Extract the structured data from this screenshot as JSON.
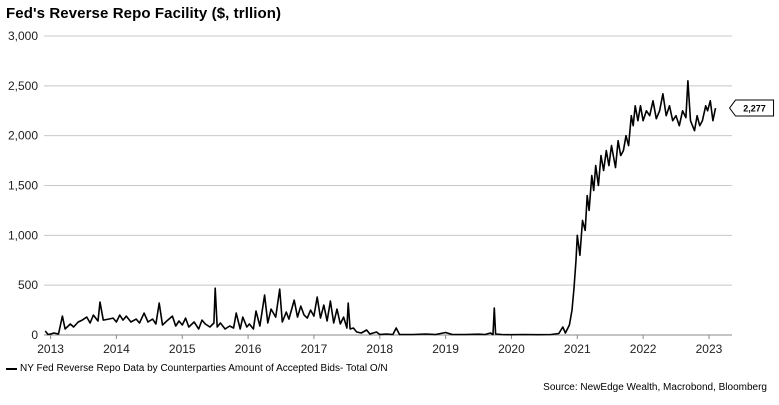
{
  "chart_data": {
    "type": "line",
    "title": "Fed's Reverse Repo Facility ($, trllion)",
    "xlabel": "",
    "ylabel": "",
    "ylim": [
      0,
      3000
    ],
    "yticks": [
      "0",
      "500",
      "1,000",
      "1,500",
      "2,000",
      "2,500",
      "3,000"
    ],
    "xlim": [
      2012.9,
      2023.35
    ],
    "xticks": [
      {
        "x": 2013,
        "label": "2013"
      },
      {
        "x": 2014,
        "label": "2014"
      },
      {
        "x": 2015,
        "label": "2015"
      },
      {
        "x": 2016,
        "label": "2016"
      },
      {
        "x": 2017,
        "label": "2017"
      },
      {
        "x": 2018,
        "label": "2018"
      },
      {
        "x": 2019,
        "label": "2019"
      },
      {
        "x": 2020,
        "label": "2020"
      },
      {
        "x": 2021,
        "label": "2021"
      },
      {
        "x": 2022,
        "label": "2022"
      },
      {
        "x": 2023,
        "label": "2023"
      }
    ],
    "grid": "horizontal",
    "legend_position": "bottom-left",
    "end_label": "2,277",
    "series": [
      {
        "name": "NY Fed Reverse Repo Data by Counterparties Amount of Accepted Bids- Total O/N",
        "color": "#000000",
        "points": [
          [
            2012.92,
            40
          ],
          [
            2012.96,
            5
          ],
          [
            2013.0,
            10
          ],
          [
            2013.05,
            20
          ],
          [
            2013.12,
            10
          ],
          [
            2013.18,
            190
          ],
          [
            2013.22,
            60
          ],
          [
            2013.3,
            110
          ],
          [
            2013.35,
            80
          ],
          [
            2013.42,
            130
          ],
          [
            2013.48,
            150
          ],
          [
            2013.55,
            180
          ],
          [
            2013.6,
            120
          ],
          [
            2013.65,
            200
          ],
          [
            2013.72,
            140
          ],
          [
            2013.75,
            330
          ],
          [
            2013.8,
            150
          ],
          [
            2013.88,
            160
          ],
          [
            2013.95,
            170
          ],
          [
            2014.0,
            130
          ],
          [
            2014.05,
            200
          ],
          [
            2014.1,
            150
          ],
          [
            2014.15,
            190
          ],
          [
            2014.22,
            130
          ],
          [
            2014.3,
            160
          ],
          [
            2014.35,
            120
          ],
          [
            2014.42,
            220
          ],
          [
            2014.48,
            130
          ],
          [
            2014.55,
            160
          ],
          [
            2014.6,
            110
          ],
          [
            2014.65,
            320
          ],
          [
            2014.7,
            100
          ],
          [
            2014.78,
            150
          ],
          [
            2014.85,
            190
          ],
          [
            2014.9,
            90
          ],
          [
            2014.95,
            140
          ],
          [
            2015.0,
            100
          ],
          [
            2015.05,
            170
          ],
          [
            2015.1,
            80
          ],
          [
            2015.18,
            130
          ],
          [
            2015.25,
            60
          ],
          [
            2015.3,
            150
          ],
          [
            2015.35,
            110
          ],
          [
            2015.42,
            80
          ],
          [
            2015.48,
            120
          ],
          [
            2015.5,
            470
          ],
          [
            2015.53,
            80
          ],
          [
            2015.58,
            120
          ],
          [
            2015.65,
            60
          ],
          [
            2015.72,
            90
          ],
          [
            2015.78,
            70
          ],
          [
            2015.82,
            220
          ],
          [
            2015.88,
            60
          ],
          [
            2015.92,
            180
          ],
          [
            2015.98,
            80
          ],
          [
            2016.02,
            110
          ],
          [
            2016.08,
            60
          ],
          [
            2016.12,
            240
          ],
          [
            2016.18,
            90
          ],
          [
            2016.25,
            400
          ],
          [
            2016.3,
            120
          ],
          [
            2016.35,
            260
          ],
          [
            2016.42,
            180
          ],
          [
            2016.48,
            460
          ],
          [
            2016.52,
            130
          ],
          [
            2016.58,
            230
          ],
          [
            2016.62,
            160
          ],
          [
            2016.7,
            350
          ],
          [
            2016.75,
            180
          ],
          [
            2016.8,
            290
          ],
          [
            2016.85,
            200
          ],
          [
            2016.9,
            170
          ],
          [
            2016.95,
            250
          ],
          [
            2017.0,
            190
          ],
          [
            2017.05,
            380
          ],
          [
            2017.1,
            170
          ],
          [
            2017.15,
            300
          ],
          [
            2017.2,
            140
          ],
          [
            2017.25,
            340
          ],
          [
            2017.3,
            120
          ],
          [
            2017.35,
            260
          ],
          [
            2017.4,
            110
          ],
          [
            2017.45,
            180
          ],
          [
            2017.5,
            70
          ],
          [
            2017.52,
            320
          ],
          [
            2017.55,
            60
          ],
          [
            2017.6,
            70
          ],
          [
            2017.65,
            30
          ],
          [
            2017.72,
            20
          ],
          [
            2017.8,
            50
          ],
          [
            2017.85,
            10
          ],
          [
            2017.95,
            30
          ],
          [
            2018.0,
            5
          ],
          [
            2018.1,
            10
          ],
          [
            2018.2,
            5
          ],
          [
            2018.25,
            70
          ],
          [
            2018.3,
            5
          ],
          [
            2018.5,
            5
          ],
          [
            2018.7,
            10
          ],
          [
            2018.85,
            5
          ],
          [
            2019.0,
            25
          ],
          [
            2019.1,
            5
          ],
          [
            2019.3,
            5
          ],
          [
            2019.5,
            8
          ],
          [
            2019.6,
            5
          ],
          [
            2019.68,
            20
          ],
          [
            2019.72,
            5
          ],
          [
            2019.74,
            270
          ],
          [
            2019.76,
            10
          ],
          [
            2019.85,
            5
          ],
          [
            2020.0,
            3
          ],
          [
            2020.2,
            5
          ],
          [
            2020.4,
            3
          ],
          [
            2020.6,
            5
          ],
          [
            2020.72,
            15
          ],
          [
            2020.78,
            80
          ],
          [
            2020.82,
            20
          ],
          [
            2020.88,
            100
          ],
          [
            2020.92,
            250
          ],
          [
            2020.95,
            470
          ],
          [
            2020.98,
            750
          ],
          [
            2021.0,
            1000
          ],
          [
            2021.04,
            800
          ],
          [
            2021.08,
            1150
          ],
          [
            2021.12,
            1050
          ],
          [
            2021.15,
            1400
          ],
          [
            2021.18,
            1250
          ],
          [
            2021.22,
            1600
          ],
          [
            2021.25,
            1450
          ],
          [
            2021.28,
            1700
          ],
          [
            2021.32,
            1500
          ],
          [
            2021.36,
            1800
          ],
          [
            2021.4,
            1650
          ],
          [
            2021.44,
            1850
          ],
          [
            2021.48,
            1700
          ],
          [
            2021.52,
            1900
          ],
          [
            2021.58,
            1680
          ],
          [
            2021.62,
            1950
          ],
          [
            2021.66,
            1800
          ],
          [
            2021.7,
            1850
          ],
          [
            2021.74,
            2000
          ],
          [
            2021.78,
            1900
          ],
          [
            2021.82,
            2200
          ],
          [
            2021.85,
            2100
          ],
          [
            2021.88,
            2300
          ],
          [
            2021.92,
            2150
          ],
          [
            2021.96,
            2300
          ],
          [
            2022.0,
            2150
          ],
          [
            2022.05,
            2250
          ],
          [
            2022.1,
            2200
          ],
          [
            2022.15,
            2350
          ],
          [
            2022.2,
            2170
          ],
          [
            2022.25,
            2250
          ],
          [
            2022.3,
            2420
          ],
          [
            2022.35,
            2200
          ],
          [
            2022.4,
            2300
          ],
          [
            2022.45,
            2150
          ],
          [
            2022.5,
            2200
          ],
          [
            2022.55,
            2100
          ],
          [
            2022.6,
            2250
          ],
          [
            2022.65,
            2180
          ],
          [
            2022.68,
            2550
          ],
          [
            2022.72,
            2150
          ],
          [
            2022.78,
            2050
          ],
          [
            2022.82,
            2200
          ],
          [
            2022.86,
            2100
          ],
          [
            2022.9,
            2150
          ],
          [
            2022.95,
            2300
          ],
          [
            2022.98,
            2250
          ],
          [
            2023.02,
            2350
          ],
          [
            2023.06,
            2150
          ],
          [
            2023.1,
            2277
          ]
        ]
      }
    ],
    "source": "Source: NewEdge Wealth, Macrobond, Bloomberg"
  }
}
